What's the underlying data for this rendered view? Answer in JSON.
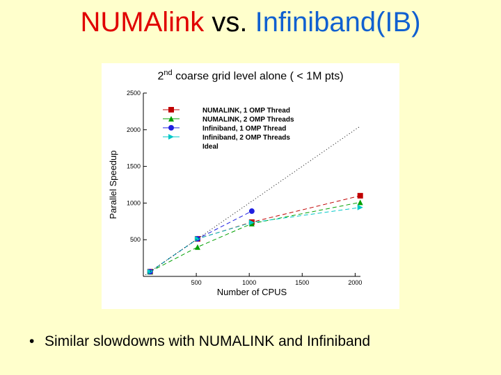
{
  "slide": {
    "title_part1": "NUMAlink",
    "title_part2": " vs. ",
    "title_part3": "Infiniband(IB)",
    "bullet": "Similar slowdowns with NUMALINK and Infiniband"
  },
  "chart_data": {
    "type": "line",
    "title_pre": "2",
    "title_sup": "nd",
    "title_post": " coarse grid level alone ( < 1M pts)",
    "xlabel": "Number of CPUS",
    "ylabel": "Parallel Speedup",
    "xlim": [
      0,
      2050
    ],
    "ylim": [
      0,
      2500
    ],
    "xticks": [
      500,
      1000,
      1500,
      2000
    ],
    "yticks": [
      500,
      1000,
      1500,
      2000,
      2500
    ],
    "grid": false,
    "legend_position": "top-left",
    "series": [
      {
        "name": "NUMALINK, 1 OMP Thread",
        "color": "#c00000",
        "marker": "square",
        "dash": "6,4",
        "x": [
          64,
          512,
          1024,
          2048
        ],
        "y": [
          64,
          512,
          740,
          1100
        ]
      },
      {
        "name": "NUMALINK, 2 OMP Threads",
        "color": "#00a000",
        "marker": "triangle",
        "dash": "6,4",
        "x": [
          64,
          512,
          1024,
          2048
        ],
        "y": [
          64,
          400,
          720,
          1010
        ]
      },
      {
        "name": "Infiniband, 1 OMP Thread",
        "color": "#2020e0",
        "marker": "circle",
        "dash": "6,4",
        "x": [
          64,
          512,
          1024
        ],
        "y": [
          64,
          512,
          890
        ]
      },
      {
        "name": "Infiniband, 2 OMP Threads",
        "color": "#00c8c8",
        "marker": "triangle-right",
        "dash": "6,4",
        "x": [
          64,
          512,
          1024,
          2048
        ],
        "y": [
          64,
          512,
          735,
          940
        ]
      },
      {
        "name": "Ideal",
        "color": "#000000",
        "marker": "none",
        "dash": "1,3",
        "x": [
          0,
          2050
        ],
        "y": [
          0,
          2050
        ]
      }
    ]
  }
}
